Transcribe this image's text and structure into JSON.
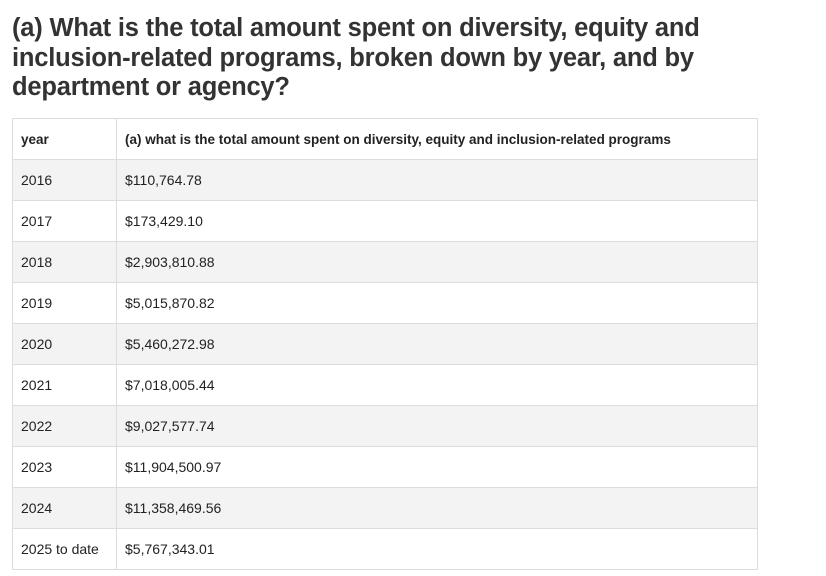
{
  "title": "(a) What is the total amount spent on diversity, equity and inclusion-related programs, broken down by year, and by department or agency?",
  "table": {
    "columns": [
      "year",
      "(a) what is the total amount spent on diversity, equity and inclusion-related programs"
    ],
    "rows": [
      {
        "year": "2016",
        "amount": "$110,764.78"
      },
      {
        "year": "2017",
        "amount": "$173,429.10"
      },
      {
        "year": "2018",
        "amount": "$2,903,810.88"
      },
      {
        "year": "2019",
        "amount": "$5,015,870.82"
      },
      {
        "year": "2020",
        "amount": "$5,460,272.98"
      },
      {
        "year": "2021",
        "amount": "$7,018,005.44"
      },
      {
        "year": "2022",
        "amount": "$9,027,577.74"
      },
      {
        "year": "2023",
        "amount": "$11,904,500.97"
      },
      {
        "year": "2024",
        "amount": "$11,358,469.56"
      },
      {
        "year": "2025 to date",
        "amount": "$5,767,343.01"
      }
    ]
  }
}
